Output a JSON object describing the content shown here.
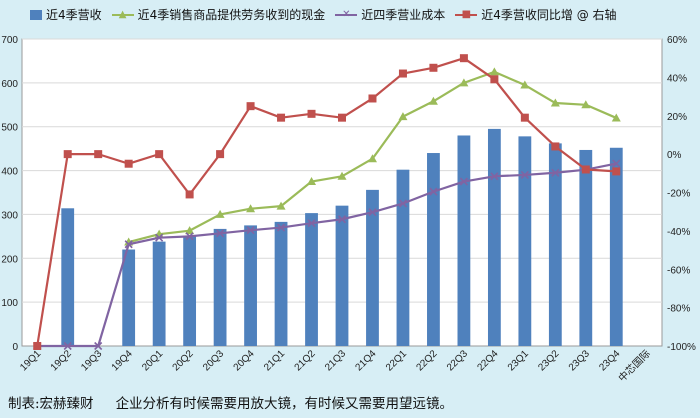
{
  "legend": {
    "bar": "近4季营收",
    "sales_cash": "近4季销售商品提供劳务收到的现金",
    "cost": "近四季营业成本",
    "yoy": "近4季营收同比增 @ 右轴"
  },
  "footer": {
    "credit": "制表:宏赫臻财",
    "slogan": "企业分析有时候需要用放大镜，有时候又需要用望远镜。"
  },
  "colors": {
    "bar": "#4f81bd",
    "sales_cash": "#9bbb59",
    "cost": "#8064a2",
    "yoy": "#c0504d",
    "background": "#d7eef5",
    "plot": "#ffffff",
    "grid": "#d9d9d9"
  },
  "chart_data": {
    "type": "bar",
    "categories": [
      "19Q1",
      "19Q2",
      "19Q3",
      "19Q4",
      "20Q1",
      "20Q2",
      "20Q3",
      "20Q4",
      "21Q1",
      "21Q2",
      "21Q3",
      "21Q4",
      "22Q1",
      "22Q2",
      "22Q3",
      "22Q4",
      "23Q1",
      "23Q2",
      "23Q3",
      "23Q4",
      "中芯国际"
    ],
    "y_left": {
      "min": 0,
      "max": 700,
      "ticks": [
        0,
        100,
        200,
        300,
        400,
        500,
        600,
        700
      ]
    },
    "y_right": {
      "min": -100,
      "max": 60,
      "ticks": [
        "-100%",
        "-80%",
        "-60%",
        "-40%",
        "-20%",
        "0%",
        "20%",
        "40%",
        "60%"
      ],
      "unit": "%"
    },
    "grid": true,
    "legend_position": "top",
    "series": [
      {
        "name": "近4季营收",
        "type": "bar",
        "axis": "left",
        "values": [
          null,
          314,
          null,
          220,
          238,
          250,
          267,
          275,
          283,
          303,
          320,
          356,
          402,
          440,
          480,
          495,
          478,
          462,
          447,
          452,
          null
        ]
      },
      {
        "name": "近4季销售商品提供劳务收到的现金",
        "type": "line",
        "axis": "left",
        "marker": "triangle",
        "values": [
          null,
          null,
          null,
          237,
          255,
          263,
          300,
          313,
          319,
          375,
          387,
          427,
          523,
          558,
          600,
          625,
          595,
          554,
          550,
          520,
          null
        ]
      },
      {
        "name": "近四季营业成本",
        "type": "line",
        "axis": "left",
        "marker": "x",
        "values": [
          0,
          0,
          0,
          232,
          247,
          250,
          257,
          264,
          270,
          280,
          289,
          305,
          325,
          352,
          375,
          387,
          390,
          395,
          402,
          416,
          null
        ]
      },
      {
        "name": "近4季营收同比增 @ 右轴",
        "type": "line",
        "axis": "right",
        "marker": "square",
        "values": [
          -100,
          0,
          0,
          -5,
          0,
          -21,
          0,
          25,
          19,
          21,
          19,
          29,
          42,
          45,
          50,
          39,
          19,
          4,
          -8,
          -9,
          null
        ]
      }
    ]
  }
}
